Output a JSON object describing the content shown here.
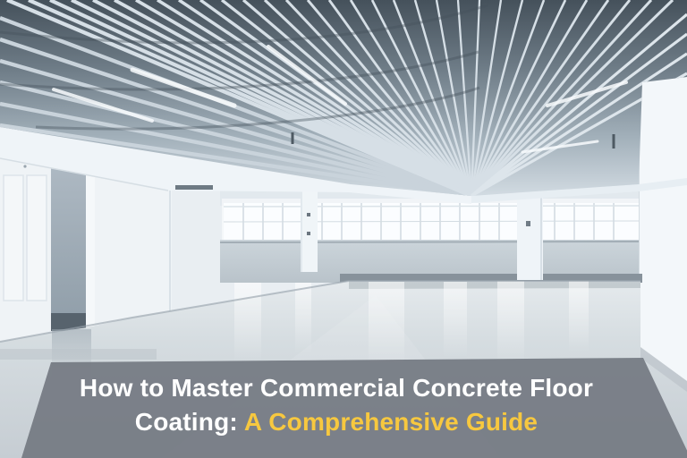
{
  "overlay": {
    "line1": "How to Master Commercial Concrete Floor",
    "line2_prefix": "Coating: ",
    "line2_highlight": "A Comprehensive Guide",
    "colors": {
      "text": "#FFFFFF",
      "highlight": "#F7C83F",
      "banner": "rgba(116,122,130,0.93)"
    }
  }
}
